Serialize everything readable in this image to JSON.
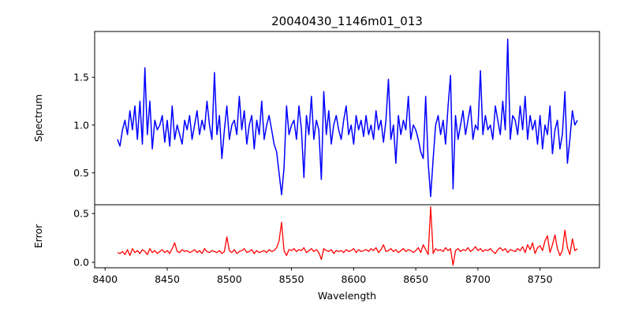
{
  "chart_data": [
    {
      "type": "line",
      "title": "20040430_1146m01_013",
      "xlabel": "",
      "ylabel": "Spectrum",
      "color": "#0000ff",
      "xlim": [
        8391.6,
        8797.8
      ],
      "ylim": [
        0.165,
        1.98
      ],
      "yticks": [
        0.5,
        1.0,
        1.5
      ],
      "ytick_labels": [
        "0.5",
        "1.0",
        "1.5"
      ],
      "x_start": 8410,
      "x_step": 2,
      "values": [
        0.85,
        0.78,
        0.95,
        1.05,
        0.9,
        1.15,
        0.95,
        1.2,
        0.85,
        1.25,
        0.8,
        1.6,
        0.9,
        1.25,
        0.75,
        1.05,
        0.95,
        1.0,
        1.1,
        0.82,
        1.05,
        0.78,
        1.2,
        0.85,
        1.0,
        0.9,
        0.8,
        1.05,
        0.95,
        1.1,
        0.85,
        1.0,
        1.15,
        0.9,
        1.05,
        0.95,
        1.25,
        1.0,
        0.85,
        1.55,
        0.9,
        1.1,
        0.65,
        0.95,
        1.2,
        0.85,
        1.0,
        1.05,
        0.9,
        1.3,
        0.95,
        1.15,
        0.8,
        1.0,
        1.1,
        0.75,
        1.05,
        0.9,
        1.25,
        0.85,
        1.0,
        1.1,
        0.95,
        0.8,
        0.72,
        0.5,
        0.27,
        0.55,
        1.2,
        0.9,
        1.0,
        1.05,
        0.85,
        1.2,
        0.95,
        0.45,
        1.1,
        0.9,
        1.3,
        0.85,
        1.05,
        0.95,
        0.43,
        1.35,
        0.9,
        1.15,
        0.8,
        1.0,
        1.1,
        0.95,
        0.85,
        1.05,
        1.2,
        0.9,
        1.0,
        0.8,
        1.1,
        0.95,
        1.05,
        0.88,
        1.1,
        0.9,
        1.0,
        0.85,
        1.15,
        0.95,
        1.05,
        0.82,
        1.05,
        1.48,
        0.85,
        1.0,
        0.6,
        1.1,
        0.9,
        1.05,
        0.95,
        1.3,
        0.85,
        1.0,
        0.95,
        0.85,
        0.72,
        0.65,
        1.3,
        0.6,
        0.25,
        0.65,
        1.0,
        1.1,
        0.9,
        1.05,
        0.8,
        1.2,
        1.52,
        0.33,
        1.1,
        0.85,
        1.0,
        1.15,
        0.9,
        1.05,
        1.2,
        0.85,
        1.0,
        0.95,
        1.57,
        0.9,
        1.1,
        0.95,
        1.0,
        0.85,
        1.2,
        1.05,
        0.9,
        1.25,
        0.95,
        1.9,
        0.85,
        1.1,
        1.05,
        0.9,
        1.2,
        0.95,
        1.3,
        0.85,
        1.1,
        0.95,
        1.05,
        0.8,
        1.1,
        0.75,
        1.0,
        0.9,
        1.2,
        0.7,
        0.95,
        1.05,
        0.75,
        0.9,
        1.35,
        0.6,
        0.85,
        1.15,
        1.0,
        1.05
      ]
    },
    {
      "type": "line",
      "xlabel": "Wavelength",
      "ylabel": "Error",
      "color": "#ff0000",
      "xlim": [
        8391.6,
        8797.8
      ],
      "ylim": [
        -0.056,
        0.59
      ],
      "xticks": [
        8400,
        8450,
        8500,
        8550,
        8600,
        8650,
        8700,
        8750
      ],
      "xtick_labels": [
        "8400",
        "8450",
        "8500",
        "8550",
        "8600",
        "8650",
        "8700",
        "8750"
      ],
      "yticks": [
        0.0,
        0.5
      ],
      "ytick_labels": [
        "0.0",
        "0.5"
      ],
      "x_start": 8410,
      "x_step": 2,
      "values": [
        0.1,
        0.09,
        0.11,
        0.08,
        0.13,
        0.07,
        0.14,
        0.1,
        0.12,
        0.09,
        0.13,
        0.11,
        0.08,
        0.14,
        0.1,
        0.12,
        0.09,
        0.11,
        0.13,
        0.1,
        0.12,
        0.09,
        0.14,
        0.2,
        0.11,
        0.1,
        0.13,
        0.11,
        0.12,
        0.1,
        0.11,
        0.13,
        0.1,
        0.12,
        0.09,
        0.14,
        0.11,
        0.1,
        0.12,
        0.11,
        0.1,
        0.12,
        0.09,
        0.11,
        0.26,
        0.12,
        0.1,
        0.13,
        0.09,
        0.11,
        0.12,
        0.14,
        0.1,
        0.11,
        0.13,
        0.09,
        0.12,
        0.1,
        0.11,
        0.12,
        0.1,
        0.13,
        0.11,
        0.12,
        0.15,
        0.22,
        0.41,
        0.12,
        0.07,
        0.13,
        0.12,
        0.14,
        0.11,
        0.13,
        0.12,
        0.15,
        0.1,
        0.12,
        0.14,
        0.11,
        0.13,
        0.1,
        0.03,
        0.14,
        0.12,
        0.11,
        0.13,
        0.09,
        0.12,
        0.11,
        0.12,
        0.1,
        0.13,
        0.11,
        0.12,
        0.14,
        0.1,
        0.13,
        0.11,
        0.12,
        0.13,
        0.11,
        0.14,
        0.12,
        0.15,
        0.1,
        0.13,
        0.18,
        0.11,
        0.12,
        0.14,
        0.11,
        0.13,
        0.1,
        0.12,
        0.14,
        0.11,
        0.13,
        0.12,
        0.1,
        0.12,
        0.15,
        0.1,
        0.18,
        0.13,
        0.08,
        0.57,
        0.09,
        0.14,
        0.12,
        0.13,
        0.11,
        0.15,
        0.12,
        0.14,
        -0.03,
        0.12,
        0.14,
        0.11,
        0.13,
        0.12,
        0.15,
        0.11,
        0.13,
        0.16,
        0.12,
        0.14,
        0.11,
        0.13,
        0.12,
        0.14,
        0.11,
        0.09,
        0.13,
        0.15,
        0.12,
        0.14,
        0.1,
        0.13,
        0.12,
        0.11,
        0.14,
        0.12,
        0.16,
        0.1,
        0.18,
        0.13,
        0.2,
        0.09,
        0.15,
        0.17,
        0.12,
        0.22,
        0.27,
        0.1,
        0.18,
        0.28,
        0.14,
        0.07,
        0.12,
        0.33,
        0.15,
        0.08,
        0.24,
        0.12,
        0.14
      ]
    }
  ]
}
